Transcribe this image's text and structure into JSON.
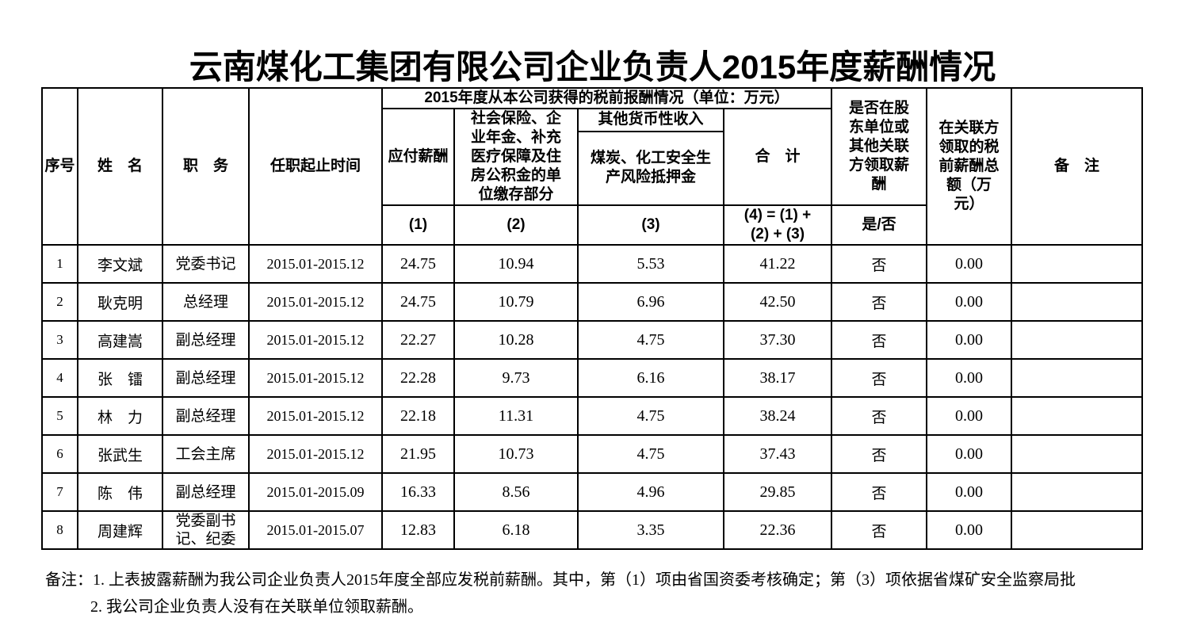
{
  "page": {
    "title": "云南煤化工集团有限公司企业负责人2015年度薪酬情况"
  },
  "table": {
    "header": {
      "seq": "序号",
      "name": "姓　名",
      "position": "职　务",
      "term": "任职起止时间",
      "span_title": "2015年度从本公司获得的税前报酬情况（单位：万元）",
      "payable": "应付薪酬",
      "social": "社会保险、企业年金、补充医疗保障及住房公积金的单位缴存部分",
      "other_income": "其他货币性收入",
      "deposit": "煤炭、化工安全生产风险抵押金",
      "total": "合　计",
      "col1": "(1)",
      "col2": "(2)",
      "col3": "(3)",
      "col4": "(4) = (1) + (2) + (3)",
      "shareholder": "是否在股东单位或其他关联方领取薪酬",
      "yes_no": "是/否",
      "related_total": "在关联方领取的税前薪酬总额（万元）",
      "remark": "备　注"
    },
    "rows": [
      {
        "seq": "1",
        "name": "李文斌",
        "position": "党委书记",
        "term": "2015.01-2015.12",
        "payable": "24.75",
        "social": "10.94",
        "other": "5.53",
        "total": "41.22",
        "yn": "否",
        "related": "0.00",
        "remark": ""
      },
      {
        "seq": "2",
        "name": "耿克明",
        "position": "总经理",
        "term": "2015.01-2015.12",
        "payable": "24.75",
        "social": "10.79",
        "other": "6.96",
        "total": "42.50",
        "yn": "否",
        "related": "0.00",
        "remark": ""
      },
      {
        "seq": "3",
        "name": "高建嵩",
        "position": "副总经理",
        "term": "2015.01-2015.12",
        "payable": "22.27",
        "social": "10.28",
        "other": "4.75",
        "total": "37.30",
        "yn": "否",
        "related": "0.00",
        "remark": ""
      },
      {
        "seq": "4",
        "name": "张　镭",
        "position": "副总经理",
        "term": "2015.01-2015.12",
        "payable": "22.28",
        "social": "9.73",
        "other": "6.16",
        "total": "38.17",
        "yn": "否",
        "related": "0.00",
        "remark": ""
      },
      {
        "seq": "5",
        "name": "林　力",
        "position": "副总经理",
        "term": "2015.01-2015.12",
        "payable": "22.18",
        "social": "11.31",
        "other": "4.75",
        "total": "38.24",
        "yn": "否",
        "related": "0.00",
        "remark": ""
      },
      {
        "seq": "6",
        "name": "张武生",
        "position": "工会主席",
        "term": "2015.01-2015.12",
        "payable": "21.95",
        "social": "10.73",
        "other": "4.75",
        "total": "37.43",
        "yn": "否",
        "related": "0.00",
        "remark": ""
      },
      {
        "seq": "7",
        "name": "陈　伟",
        "position": "副总经理",
        "term": "2015.01-2015.09",
        "payable": "16.33",
        "social": "8.56",
        "other": "4.96",
        "total": "29.85",
        "yn": "否",
        "related": "0.00",
        "remark": ""
      },
      {
        "seq": "8",
        "name": "周建辉",
        "position": "党委副书记、纪委",
        "term": "2015.01-2015.07",
        "payable": "12.83",
        "social": "6.18",
        "other": "3.35",
        "total": "22.36",
        "yn": "否",
        "related": "0.00",
        "remark": ""
      }
    ]
  },
  "footer": {
    "label": "备注：",
    "note1": "1. 上表披露薪酬为我公司企业负责人2015年度全部应发税前薪酬。其中，第（1）项由省国资委考核确定；第（3）项依据省煤矿安全监察局批",
    "note2": "2. 我公司企业负责人没有在关联单位领取薪酬。"
  }
}
